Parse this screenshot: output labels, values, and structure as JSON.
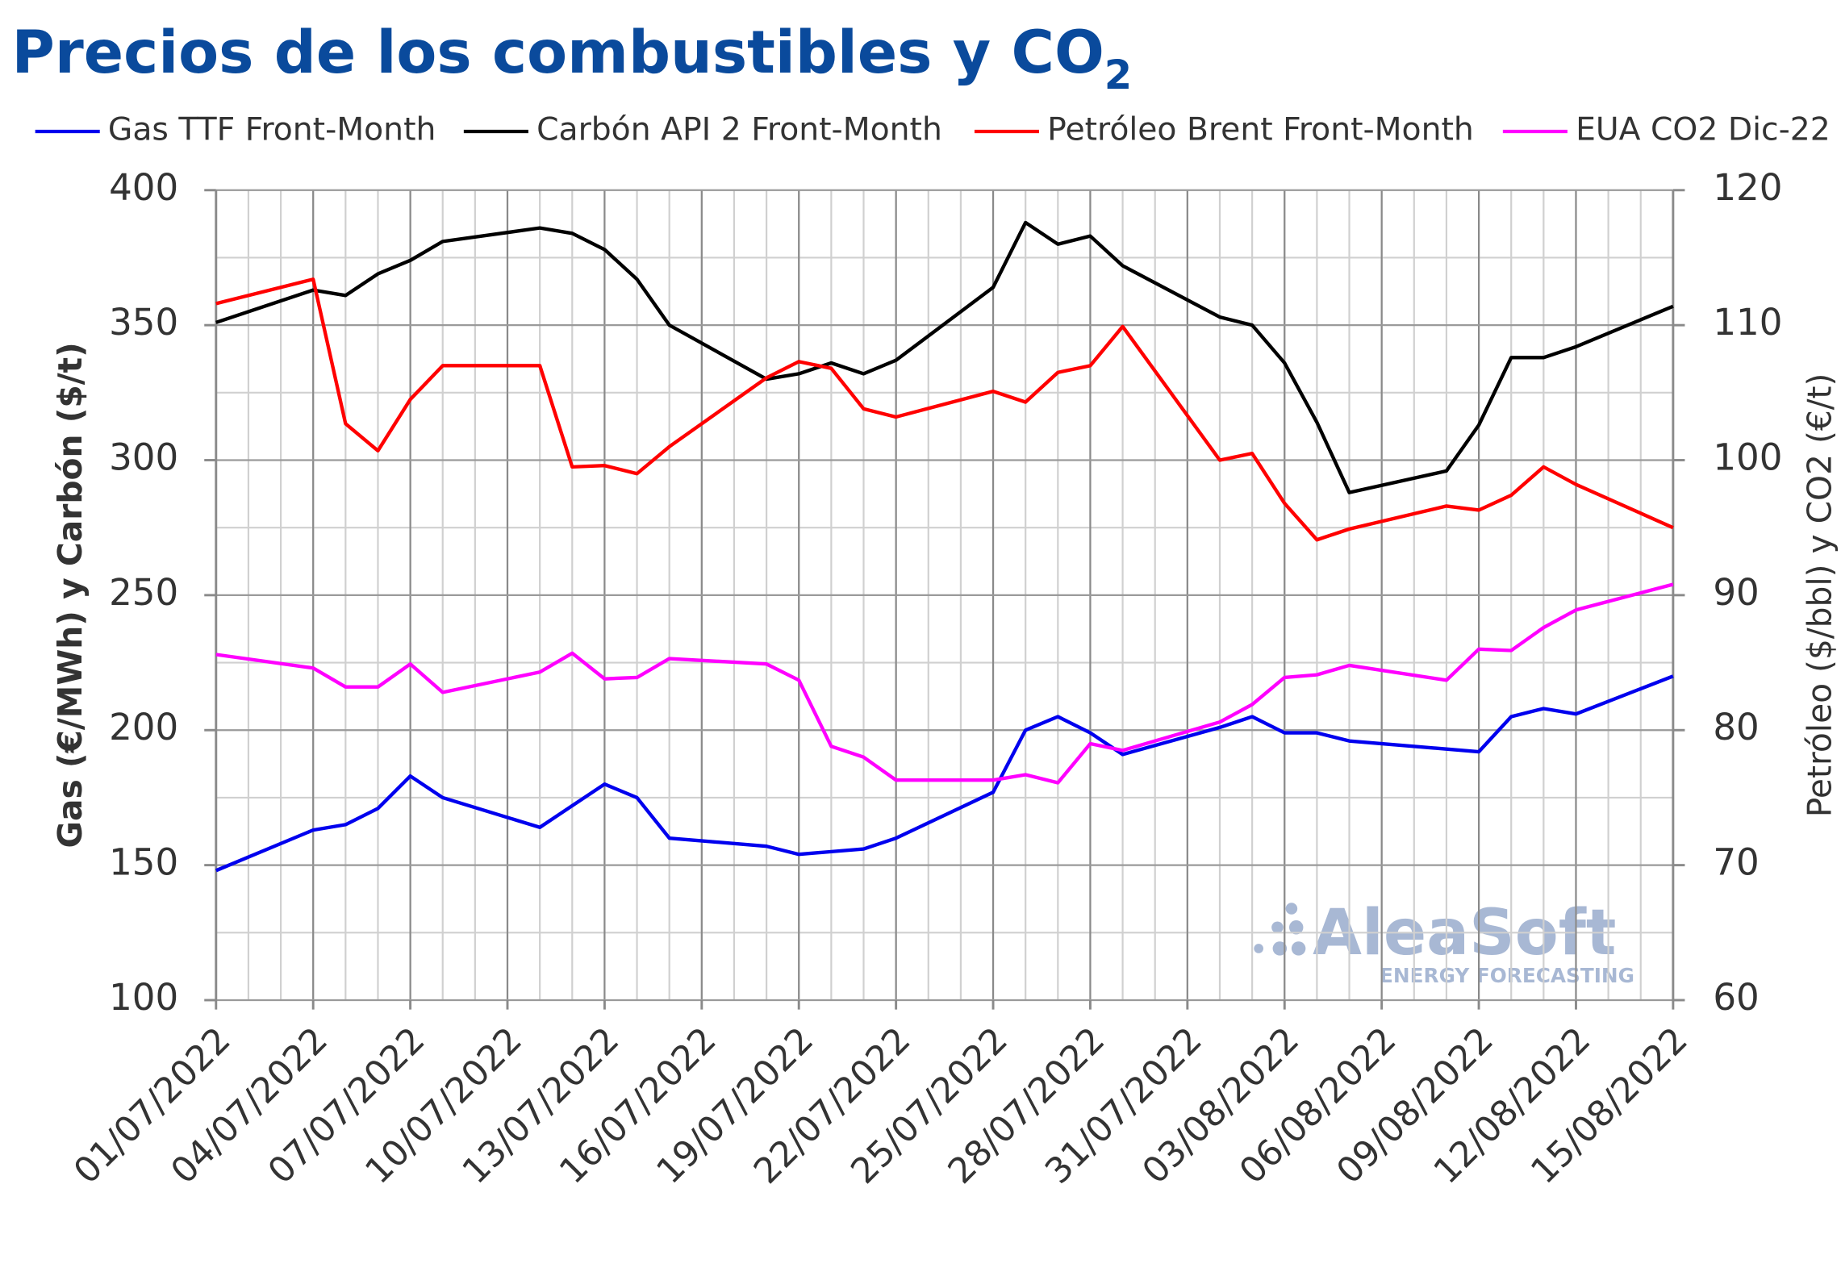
{
  "chart_data": {
    "type": "line",
    "title": "Precios de los combustibles y CO",
    "title_subscript": "2",
    "y_label": "Gas (€/MWh) y Carbón ($/t)",
    "y2_label": "Petróleo ($/bbl) y CO2 (€/t)",
    "watermark": {
      "name": "AleaSoft",
      "tagline": "ENERGY FORECASTING"
    },
    "x": [
      "01/07/2022",
      "04/07/2022",
      "05/07/2022",
      "06/07/2022",
      "07/07/2022",
      "08/07/2022",
      "11/07/2022",
      "12/07/2022",
      "13/07/2022",
      "14/07/2022",
      "15/07/2022",
      "18/07/2022",
      "19/07/2022",
      "20/07/2022",
      "21/07/2022",
      "22/07/2022",
      "25/07/2022",
      "26/07/2022",
      "27/07/2022",
      "28/07/2022",
      "29/07/2022",
      "01/08/2022",
      "02/08/2022",
      "03/08/2022",
      "04/08/2022",
      "05/08/2022",
      "08/08/2022",
      "09/08/2022",
      "10/08/2022",
      "11/08/2022",
      "12/08/2022",
      "15/08/2022"
    ],
    "xlim": [
      "01/07/2022",
      "15/08/2022"
    ],
    "xticks": [
      "01/07/2022",
      "04/07/2022",
      "07/07/2022",
      "10/07/2022",
      "13/07/2022",
      "16/07/2022",
      "19/07/2022",
      "22/07/2022",
      "25/07/2022",
      "28/07/2022",
      "31/07/2022",
      "03/08/2022",
      "06/08/2022",
      "09/08/2022",
      "12/08/2022",
      "15/08/2022"
    ],
    "ylim": [
      100,
      400
    ],
    "yticks": [
      100,
      150,
      200,
      250,
      300,
      350,
      400
    ],
    "y2lim": [
      60,
      120
    ],
    "y2ticks": [
      60,
      70,
      80,
      90,
      100,
      110,
      120
    ],
    "grid": true,
    "series": [
      {
        "name": "Gas TTF Front-Month",
        "color": "#0000ee",
        "axis": "y",
        "values": [
          148,
          163,
          165,
          171,
          183,
          175,
          164,
          172,
          180,
          175,
          160,
          157,
          154,
          155,
          156,
          160,
          177,
          200,
          205,
          199,
          191,
          201,
          205,
          199,
          199,
          196,
          193,
          192,
          205,
          208,
          206,
          220
        ]
      },
      {
        "name": "Carbón API 2 Front-Month",
        "color": "#000000",
        "axis": "y",
        "values": [
          351,
          363,
          361,
          369,
          374,
          381,
          386,
          384,
          378,
          367,
          350,
          330,
          332,
          336,
          332,
          337,
          364,
          388,
          380,
          383,
          372,
          353,
          350,
          336,
          314,
          288,
          296,
          313,
          338,
          338,
          342,
          357
        ]
      },
      {
        "name": "Petróleo Brent Front-Month",
        "color": "#ff0000",
        "axis": "y2",
        "values": [
          111.6,
          113.4,
          102.7,
          100.7,
          104.5,
          107.0,
          107.0,
          99.5,
          99.6,
          99.0,
          101.0,
          106.1,
          107.3,
          106.8,
          103.8,
          103.2,
          105.1,
          104.3,
          106.5,
          107.0,
          109.9,
          100.0,
          100.5,
          96.8,
          94.1,
          94.9,
          96.6,
          96.3,
          97.4,
          99.5,
          98.2,
          95.0
        ]
      },
      {
        "name": "EUA CO2 Dic-22",
        "color": "#ff00ff",
        "axis": "y2",
        "values": [
          85.6,
          84.6,
          83.2,
          83.2,
          84.9,
          82.8,
          84.3,
          85.7,
          83.8,
          83.9,
          85.3,
          84.9,
          83.7,
          78.8,
          78.0,
          76.3,
          76.3,
          76.7,
          76.1,
          79.0,
          78.5,
          80.6,
          81.9,
          83.9,
          84.1,
          84.8,
          83.7,
          86.0,
          85.9,
          87.6,
          88.9,
          90.8
        ]
      }
    ]
  }
}
